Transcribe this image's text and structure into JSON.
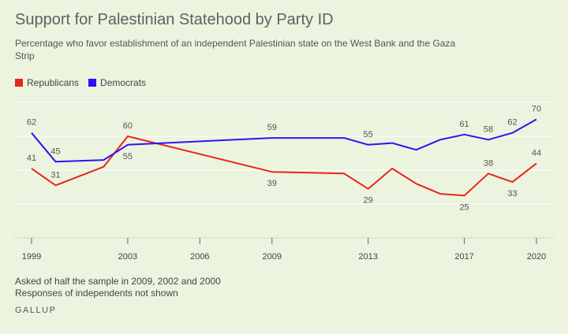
{
  "chart_data": {
    "type": "line",
    "title": "Support for Palestinian Statehood by Party ID",
    "subtitle": "Percentage who favor establishment of an independent Palestinian state on the West Bank and the Gaza Strip",
    "x_ticks": [
      "1999",
      "2003",
      "2006",
      "2009",
      "2013",
      "2017",
      "2020"
    ],
    "ylim": [
      0,
      80
    ],
    "grid": true,
    "legend_position": "top-left",
    "series": [
      {
        "name": "Republicans",
        "color": "#e8251a",
        "points": [
          {
            "x": 1999,
            "y": 41
          },
          {
            "x": 2000,
            "y": 31
          },
          {
            "x": 2002,
            "y": 42
          },
          {
            "x": 2003,
            "y": 60
          },
          {
            "x": 2009,
            "y": 39
          },
          {
            "x": 2012,
            "y": 38
          },
          {
            "x": 2013,
            "y": 29
          },
          {
            "x": 2014,
            "y": 41
          },
          {
            "x": 2015,
            "y": 32
          },
          {
            "x": 2016,
            "y": 26
          },
          {
            "x": 2017,
            "y": 25
          },
          {
            "x": 2018,
            "y": 38
          },
          {
            "x": 2019,
            "y": 33
          },
          {
            "x": 2020,
            "y": 44
          }
        ]
      },
      {
        "name": "Democrats",
        "color": "#2c14f2",
        "points": [
          {
            "x": 1999,
            "y": 62
          },
          {
            "x": 2000,
            "y": 45
          },
          {
            "x": 2002,
            "y": 46
          },
          {
            "x": 2003,
            "y": 55
          },
          {
            "x": 2009,
            "y": 59
          },
          {
            "x": 2012,
            "y": 59
          },
          {
            "x": 2013,
            "y": 55
          },
          {
            "x": 2014,
            "y": 56
          },
          {
            "x": 2015,
            "y": 52
          },
          {
            "x": 2016,
            "y": 58
          },
          {
            "x": 2017,
            "y": 61
          },
          {
            "x": 2018,
            "y": 58
          },
          {
            "x": 2019,
            "y": 62
          },
          {
            "x": 2020,
            "y": 70
          }
        ]
      }
    ],
    "data_labels": [
      {
        "series": "Republicans",
        "x": 1999,
        "text": "41",
        "where": "above"
      },
      {
        "series": "Republicans",
        "x": 2000,
        "text": "31",
        "where": "above"
      },
      {
        "series": "Republicans",
        "x": 2003,
        "text": "60",
        "where": "above"
      },
      {
        "series": "Republicans",
        "x": 2009,
        "text": "39",
        "where": "below"
      },
      {
        "series": "Republicans",
        "x": 2013,
        "text": "29",
        "where": "below"
      },
      {
        "series": "Republicans",
        "x": 2017,
        "text": "25",
        "where": "below"
      },
      {
        "series": "Republicans",
        "x": 2018,
        "text": "38",
        "where": "above"
      },
      {
        "series": "Republicans",
        "x": 2019,
        "text": "33",
        "where": "below"
      },
      {
        "series": "Republicans",
        "x": 2020,
        "text": "44",
        "where": "above"
      },
      {
        "series": "Democrats",
        "x": 1999,
        "text": "62",
        "where": "above"
      },
      {
        "series": "Democrats",
        "x": 2000,
        "text": "45",
        "where": "above"
      },
      {
        "series": "Democrats",
        "x": 2003,
        "text": "55",
        "where": "below"
      },
      {
        "series": "Democrats",
        "x": 2009,
        "text": "59",
        "where": "above"
      },
      {
        "series": "Democrats",
        "x": 2013,
        "text": "55",
        "where": "above"
      },
      {
        "series": "Democrats",
        "x": 2017,
        "text": "61",
        "where": "above"
      },
      {
        "series": "Democrats",
        "x": 2018,
        "text": "58",
        "where": "above"
      },
      {
        "series": "Democrats",
        "x": 2019,
        "text": "62",
        "where": "above"
      },
      {
        "series": "Democrats",
        "x": 2020,
        "text": "70",
        "where": "above"
      }
    ]
  },
  "legend": {
    "republicans": "Republicans",
    "democrats": "Democrats"
  },
  "notes": {
    "line1": "Asked of half the sample in 2009, 2002 and 2000",
    "line2": "Responses of independents not shown"
  },
  "source": "GALLUP",
  "colors": {
    "background": "#ecf3de",
    "grid": "#ffffff",
    "republicans": "#e8251a",
    "democrats": "#2c14f2"
  }
}
